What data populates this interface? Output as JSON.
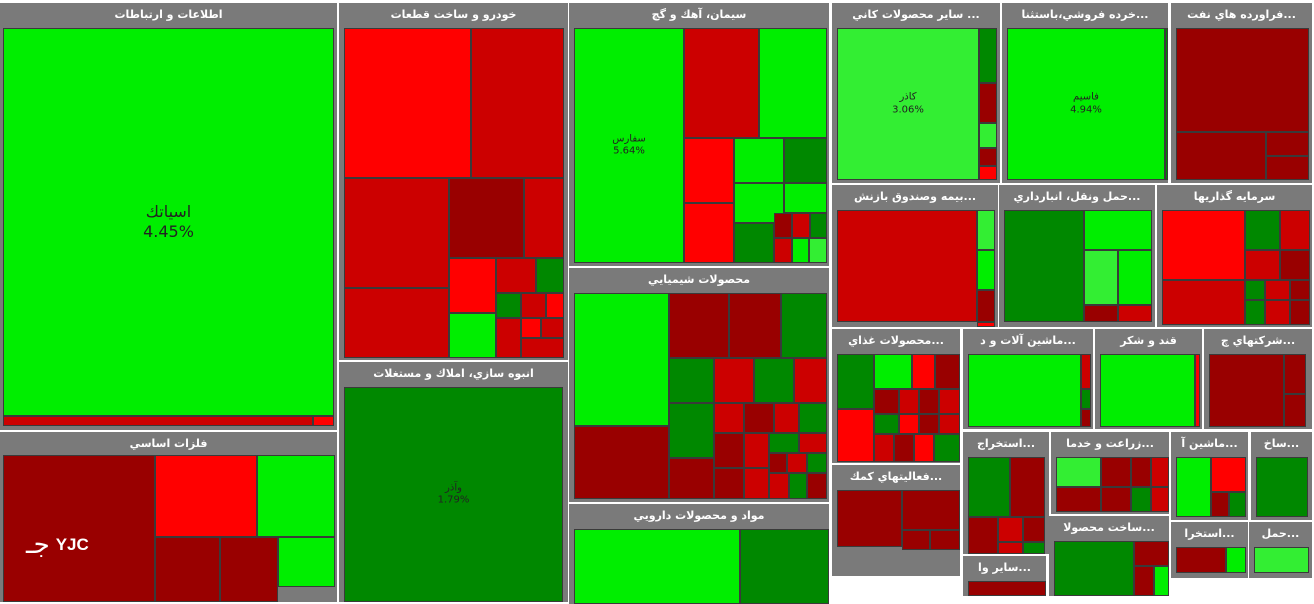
{
  "colors": {
    "up_strong": "#00ee00",
    "up_light": "#33ee33",
    "up_dark": "#008800",
    "down_strong": "#ff0000",
    "down_mid": "#cc0000",
    "down_dark": "#990000",
    "header": "#7a7a7a"
  },
  "logo": {
    "mark": "جـ",
    "text": "YJC"
  },
  "chart_data": {
    "type": "treemap",
    "sectors": [
      {
        "name": "اطلاعات و ارتباطات",
        "stocks": [
          {
            "name": "اسياتك",
            "change": "4.45%"
          }
        ]
      },
      {
        "name": "خودرو و ساخت قطعات",
        "stocks": []
      },
      {
        "name": "سيمان، آهك و گچ",
        "stocks": [
          {
            "name": "سفارس",
            "change": "5.64%"
          }
        ]
      },
      {
        "name": "... ساير محصولات كاني",
        "stocks": [
          {
            "name": "كاذر",
            "change": "3.06%"
          }
        ]
      },
      {
        "name": "...خرده فروشي،باستثنا",
        "stocks": [
          {
            "name": "فاسيم",
            "change": "4.94%"
          }
        ]
      },
      {
        "name": "...فراورده هاي نفت",
        "stocks": []
      },
      {
        "name": "محصولات شيميايي",
        "stocks": []
      },
      {
        "name": "...بيمه وصندوق بازنش",
        "stocks": []
      },
      {
        "name": "...حمل ونقل، انبارداري",
        "stocks": []
      },
      {
        "name": "سرمايه گذاريها",
        "stocks": []
      },
      {
        "name": "انبوه سازي، املاك و مستغلات",
        "stocks": [
          {
            "name": "وآذر",
            "change": "1.79%"
          }
        ]
      },
      {
        "name": "...محصولات غذاي",
        "stocks": []
      },
      {
        "name": "...ماشين آلات و د",
        "stocks": []
      },
      {
        "name": "قند و شكر",
        "stocks": []
      },
      {
        "name": "...شركتهاي چ",
        "stocks": []
      },
      {
        "name": "فلزات اساسي",
        "stocks": []
      },
      {
        "name": "مواد و محصولات دارويي",
        "stocks": []
      },
      {
        "name": "...استخراج",
        "stocks": []
      },
      {
        "name": "...زراعت و خدما",
        "stocks": []
      },
      {
        "name": "...ماشين آ",
        "stocks": []
      },
      {
        "name": "...ساخ",
        "stocks": []
      },
      {
        "name": "...فعاليتهاي كمك",
        "stocks": []
      },
      {
        "name": "...ساخت محصولا",
        "stocks": []
      },
      {
        "name": "...استخرا",
        "stocks": []
      },
      {
        "name": "...حمل",
        "stocks": []
      },
      {
        "name": "...ساير وا",
        "stocks": []
      }
    ]
  }
}
